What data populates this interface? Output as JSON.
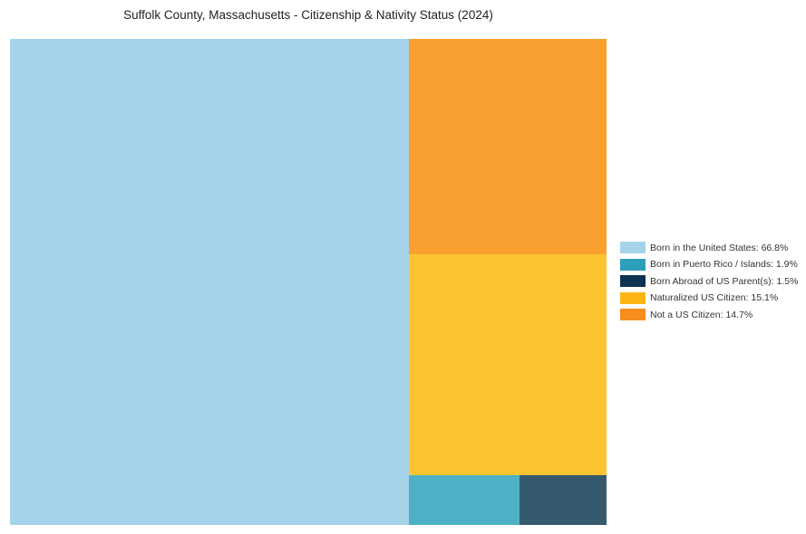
{
  "title": "Suffolk County, Massachusetts - Citizenship & Nativity Status (2024)",
  "chart_data": {
    "type": "treemap",
    "title": "Suffolk County, Massachusetts - Citizenship & Nativity Status (2024)",
    "unit": "%",
    "legend_position": "right",
    "grid": false,
    "series": [
      {
        "label": "Born in the United States",
        "value": 66.8,
        "legend_label": "Born in the United States: 66.8%",
        "tile_color": "#A5D3EA",
        "legend_color": "#A5D3EA"
      },
      {
        "label": "Born in Puerto Rico / Islands",
        "value": 1.9,
        "legend_label": "Born in Puerto Rico / Islands: 1.9%",
        "tile_color": "#4EB0C4",
        "legend_color": "#2D9EBB"
      },
      {
        "label": "Born Abroad of US Parent(s)",
        "value": 1.5,
        "legend_label": "Born Abroad of US Parent(s): 1.5%",
        "tile_color": "#365A6D",
        "legend_color": "#0D3353"
      },
      {
        "label": "Naturalized US Citizen",
        "value": 15.1,
        "legend_label": "Naturalized US Citizen: 15.1%",
        "tile_color": "#FDC432",
        "legend_color": "#FCB614"
      },
      {
        "label": "Not a US Citizen",
        "value": 14.7,
        "legend_label": "Not a US Citizen: 14.7%",
        "tile_color": "#F9A030",
        "legend_color": "#F78D1C"
      }
    ]
  }
}
